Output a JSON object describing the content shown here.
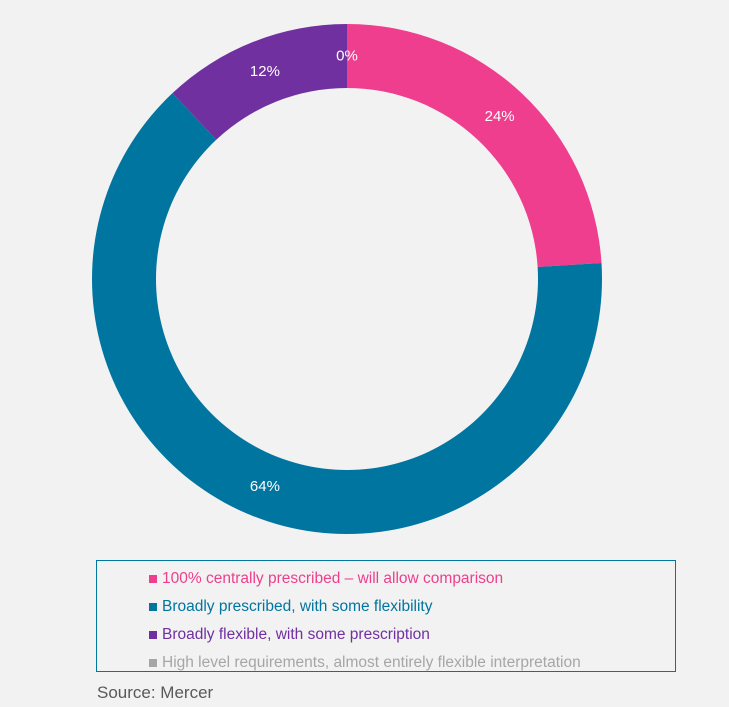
{
  "chart_data": {
    "type": "pie",
    "donut": true,
    "legend_position": "bottom",
    "slices": [
      {
        "label": "100% centrally prescribed – will allow comparison",
        "value": 24,
        "value_label": "24%",
        "color": "#ef3e8e"
      },
      {
        "label": "Broadly prescribed, with some flexibility",
        "value": 64,
        "value_label": "64%",
        "color": "#00759f"
      },
      {
        "label": "Broadly flexible, with some prescription",
        "value": 12,
        "value_label": "12%",
        "color": "#7030a0"
      },
      {
        "label": "High level requirements, almost entirely flexible interpretation",
        "value": 0,
        "value_label": "0%",
        "color": "#a6a6a6"
      }
    ]
  },
  "source": "Source: Mercer"
}
